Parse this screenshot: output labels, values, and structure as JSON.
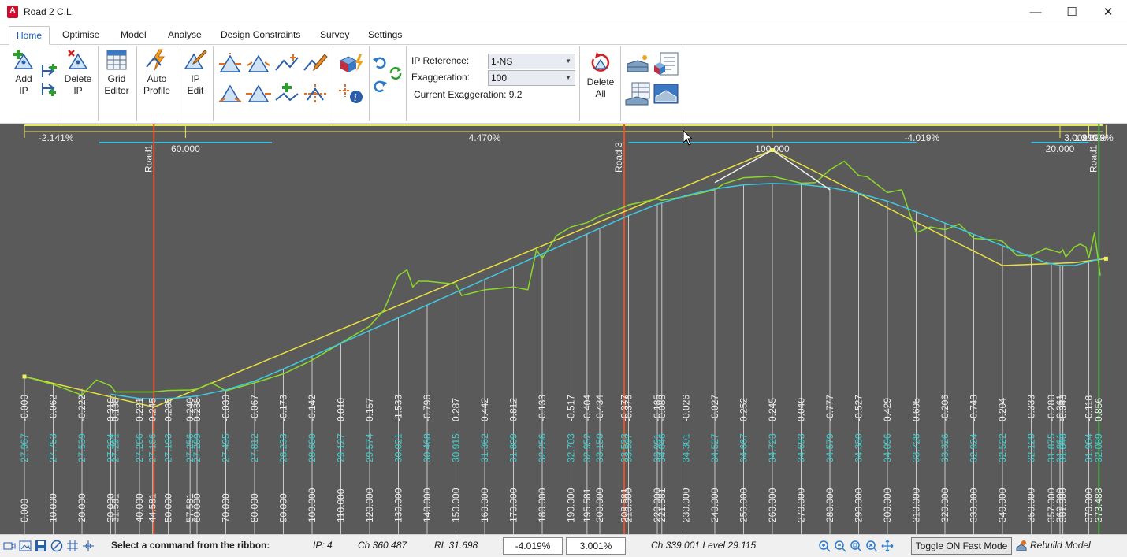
{
  "window": {
    "app_icon_letter": "A",
    "title": "Road 2 C.L.",
    "minimize": "—",
    "maximize": "☐",
    "close": "✕"
  },
  "tabs": [
    "Home",
    "Optimise",
    "Model",
    "Analyse",
    "Design Constraints",
    "Survey",
    "Settings"
  ],
  "ribbon": {
    "add_ip": [
      "Add",
      "IP"
    ],
    "delete_ip": [
      "Delete",
      "IP"
    ],
    "grid_editor": [
      "Grid",
      "Editor"
    ],
    "auto_profile": [
      "Auto",
      "Profile"
    ],
    "ip_edit": [
      "IP",
      "Edit"
    ],
    "ip_reference_label": "IP Reference:",
    "ip_reference_value": "1-NS",
    "exaggeration_label": "Exaggeration:",
    "exaggeration_value": "100",
    "current_exaggeration": "Current Exaggeration: 9.2",
    "delete_all": [
      "Delete",
      "All"
    ]
  },
  "profile": {
    "grades": [
      {
        "text": "-2.141%",
        "ch": 11
      },
      {
        "text": "4.470%",
        "ch": 160
      },
      {
        "text": "-4.019%",
        "ch": 312
      },
      {
        "text": "3.001%",
        "ch": 367
      },
      {
        "text": "-1.910%",
        "ch": 370
      },
      {
        "text": "2.399%",
        "ch": 373
      }
    ],
    "vc_lengths": [
      {
        "text": "60.000",
        "ch": 56
      },
      {
        "text": "100.000",
        "ch": 260
      },
      {
        "text": "20.000",
        "ch": 360
      }
    ],
    "road_markers": [
      {
        "text": "Road1",
        "ch": 45,
        "color": "#e8502a"
      },
      {
        "text": "Road 3",
        "ch": 208.5,
        "color": "#e8502a"
      },
      {
        "text": "Road1",
        "ch": 373.5,
        "color": "#4aa04a"
      }
    ],
    "stations": [
      {
        "ch": "0.000",
        "dl": "27.967",
        "diff": "-0.000"
      },
      {
        "ch": "10.000",
        "dl": "27.753",
        "diff": "-0.062"
      },
      {
        "ch": "20.000",
        "dl": "27.539",
        "diff": "-0.222"
      },
      {
        "ch": "30.000",
        "dl": "27.324",
        "diff": "0.318"
      },
      {
        "ch": "31.581",
        "dl": "27.291",
        "diff": "0.138"
      },
      {
        "ch": "40.000",
        "dl": "27.206",
        "diff": "0.221"
      },
      {
        "ch": "44.581",
        "dl": "27.186",
        "diff": "0.245"
      },
      {
        "ch": "50.000",
        "dl": "27.193",
        "diff": "0.285"
      },
      {
        "ch": "57.581",
        "dl": "27.256",
        "diff": "0.240"
      },
      {
        "ch": "60.000",
        "dl": "27.289",
        "diff": "0.238"
      },
      {
        "ch": "70.000",
        "dl": "27.495",
        "diff": "-0.030"
      },
      {
        "ch": "80.000",
        "dl": "27.812",
        "diff": "-0.067"
      },
      {
        "ch": "90.000",
        "dl": "28.233",
        "diff": "-0.173"
      },
      {
        "ch": "100.000",
        "dl": "28.680",
        "diff": "-0.142"
      },
      {
        "ch": "110.000",
        "dl": "29.127",
        "diff": "0.010"
      },
      {
        "ch": "120.000",
        "dl": "29.574",
        "diff": "0.157"
      },
      {
        "ch": "130.000",
        "dl": "30.021",
        "diff": "-1.533"
      },
      {
        "ch": "140.000",
        "dl": "30.468",
        "diff": "-0.796"
      },
      {
        "ch": "150.000",
        "dl": "30.915",
        "diff": "0.287"
      },
      {
        "ch": "160.000",
        "dl": "31.362",
        "diff": "0.442"
      },
      {
        "ch": "170.000",
        "dl": "31.809",
        "diff": "0.812"
      },
      {
        "ch": "180.000",
        "dl": "32.256",
        "diff": "-0.133"
      },
      {
        "ch": "190.000",
        "dl": "32.703",
        "diff": "-0.517"
      },
      {
        "ch": "195.581",
        "dl": "32.952",
        "diff": "-0.404"
      },
      {
        "ch": "200.000",
        "dl": "33.150",
        "diff": "-0.434"
      },
      {
        "ch": "208.581",
        "dl": "33.533",
        "diff": "-0.377"
      },
      {
        "ch": "210.000",
        "dl": "33.597",
        "diff": "-0.376"
      },
      {
        "ch": "220.000",
        "dl": "33.991",
        "diff": "-0.185"
      },
      {
        "ch": "221.581",
        "dl": "34.046",
        "diff": "-0.088"
      },
      {
        "ch": "230.000",
        "dl": "34.301",
        "diff": "-0.026"
      },
      {
        "ch": "240.000",
        "dl": "34.527",
        "diff": "-0.027"
      },
      {
        "ch": "250.000",
        "dl": "34.667",
        "diff": "0.252"
      },
      {
        "ch": "260.000",
        "dl": "34.723",
        "diff": "0.245"
      },
      {
        "ch": "270.000",
        "dl": "34.693",
        "diff": "0.040"
      },
      {
        "ch": "280.000",
        "dl": "34.579",
        "diff": "-0.777"
      },
      {
        "ch": "290.000",
        "dl": "34.380",
        "diff": "-0.527"
      },
      {
        "ch": "300.000",
        "dl": "34.096",
        "diff": "0.429"
      },
      {
        "ch": "310.000",
        "dl": "33.728",
        "diff": "0.695"
      },
      {
        "ch": "320.000",
        "dl": "33.326",
        "diff": "-0.206"
      },
      {
        "ch": "330.000",
        "dl": "32.924",
        "diff": "-0.743"
      },
      {
        "ch": "340.000",
        "dl": "32.522",
        "diff": "0.204"
      },
      {
        "ch": "350.000",
        "dl": "32.120",
        "diff": "-0.333"
      },
      {
        "ch": "357.000",
        "dl": "31.875",
        "diff": "-0.280"
      },
      {
        "ch": "360.000",
        "dl": "31.861",
        "diff": "-0.361"
      },
      {
        "ch": "361.000",
        "dl": "31.848",
        "diff": "-0.340"
      },
      {
        "ch": "370.000",
        "dl": "31.984",
        "diff": "-0.118"
      },
      {
        "ch": "373.488",
        "dl": "32.089",
        "diff": "0.856"
      }
    ],
    "ip_points": [
      [
        0,
        27.967
      ],
      [
        56,
        26.768
      ],
      [
        260,
        35.888
      ],
      [
        360,
        31.869
      ],
      [
        370,
        31.979
      ],
      [
        376,
        32.089
      ]
    ],
    "tangent_rl": [
      [
        0,
        27.967
      ],
      [
        45,
        26.9
      ],
      [
        260,
        35.888
      ],
      [
        340,
        31.85
      ],
      [
        365,
        31.95
      ],
      [
        376,
        32.089
      ]
    ],
    "existing_ground": [
      [
        0,
        27.97
      ],
      [
        10,
        27.69
      ],
      [
        20,
        27.32
      ],
      [
        25,
        27.85
      ],
      [
        30,
        27.64
      ],
      [
        31.6,
        27.43
      ],
      [
        40,
        27.43
      ],
      [
        44.6,
        27.43
      ],
      [
        50,
        27.48
      ],
      [
        57.6,
        27.5
      ],
      [
        60,
        27.53
      ],
      [
        65,
        27.75
      ],
      [
        70,
        27.47
      ],
      [
        80,
        27.75
      ],
      [
        90,
        28.06
      ],
      [
        100,
        28.54
      ],
      [
        110,
        29.14
      ],
      [
        120,
        29.73
      ],
      [
        125,
        30.3
      ],
      [
        130,
        31.5
      ],
      [
        133,
        31.7
      ],
      [
        135,
        31.1
      ],
      [
        137,
        31.3
      ],
      [
        140,
        31.3
      ],
      [
        145,
        31.25
      ],
      [
        150,
        31.2
      ],
      [
        152,
        30.8
      ],
      [
        160,
        31.0
      ],
      [
        170,
        31.1
      ],
      [
        175,
        31.0
      ],
      [
        178,
        32.4
      ],
      [
        180,
        32.1
      ],
      [
        185,
        32.9
      ],
      [
        190,
        33.2
      ],
      [
        195.6,
        33.35
      ],
      [
        200,
        33.58
      ],
      [
        208.6,
        33.9
      ],
      [
        210,
        33.97
      ],
      [
        220,
        34.18
      ],
      [
        221.6,
        34.13
      ],
      [
        230,
        34.27
      ],
      [
        240,
        34.5
      ],
      [
        243,
        34.7
      ],
      [
        250,
        34.92
      ],
      [
        260,
        34.97
      ],
      [
        270,
        34.73
      ],
      [
        275,
        34.75
      ],
      [
        280,
        35.2
      ],
      [
        285,
        35.5
      ],
      [
        290,
        35.0
      ],
      [
        293,
        34.95
      ],
      [
        300,
        34.4
      ],
      [
        305,
        34.5
      ],
      [
        310,
        33.0
      ],
      [
        315,
        33.2
      ],
      [
        320,
        33.1
      ],
      [
        325,
        33.3
      ],
      [
        330,
        32.8
      ],
      [
        338,
        32.75
      ],
      [
        340,
        32.7
      ],
      [
        345,
        32.2
      ],
      [
        350,
        32.2
      ],
      [
        355,
        32.45
      ],
      [
        360,
        32.3
      ],
      [
        361,
        32.4
      ],
      [
        362,
        32.15
      ],
      [
        365,
        32.5
      ],
      [
        367,
        32.6
      ],
      [
        369,
        32.5
      ],
      [
        370,
        32.1
      ],
      [
        372,
        33.0
      ],
      [
        374,
        31.5
      ]
    ],
    "vc_curve": [
      [
        30,
        27.35
      ],
      [
        40,
        27.2
      ],
      [
        50,
        27.19
      ],
      [
        60,
        27.29
      ],
      [
        70,
        27.5
      ],
      [
        80,
        27.81
      ],
      [
        90,
        28.23
      ],
      [
        100,
        28.68
      ],
      [
        110,
        29.13
      ],
      [
        200,
        33.15
      ],
      [
        210,
        33.6
      ],
      [
        220,
        33.99
      ],
      [
        230,
        34.3
      ],
      [
        240,
        34.53
      ],
      [
        250,
        34.67
      ],
      [
        260,
        34.72
      ],
      [
        270,
        34.69
      ],
      [
        280,
        34.58
      ],
      [
        290,
        34.38
      ],
      [
        300,
        34.1
      ],
      [
        310,
        33.73
      ],
      [
        355,
        31.95
      ],
      [
        360,
        31.86
      ],
      [
        362,
        31.85
      ],
      [
        365,
        31.85
      ],
      [
        370,
        31.98
      ],
      [
        374,
        32.09
      ]
    ],
    "tangent_triangle": [
      [
        240,
        34.75
      ],
      [
        260,
        35.888
      ],
      [
        280,
        34.5
      ]
    ]
  },
  "status": {
    "prompt": "Select a command from the ribbon:",
    "ip": "IP: 4",
    "ch": "Ch 360.487",
    "rl": "RL 31.698",
    "grade_in": "-4.019%",
    "grade_out": "3.001%",
    "cursor": "Ch 339.001  Level 29.115",
    "fast_mode": "Toggle ON Fast Mode",
    "rebuild": "Rebuild Model"
  }
}
